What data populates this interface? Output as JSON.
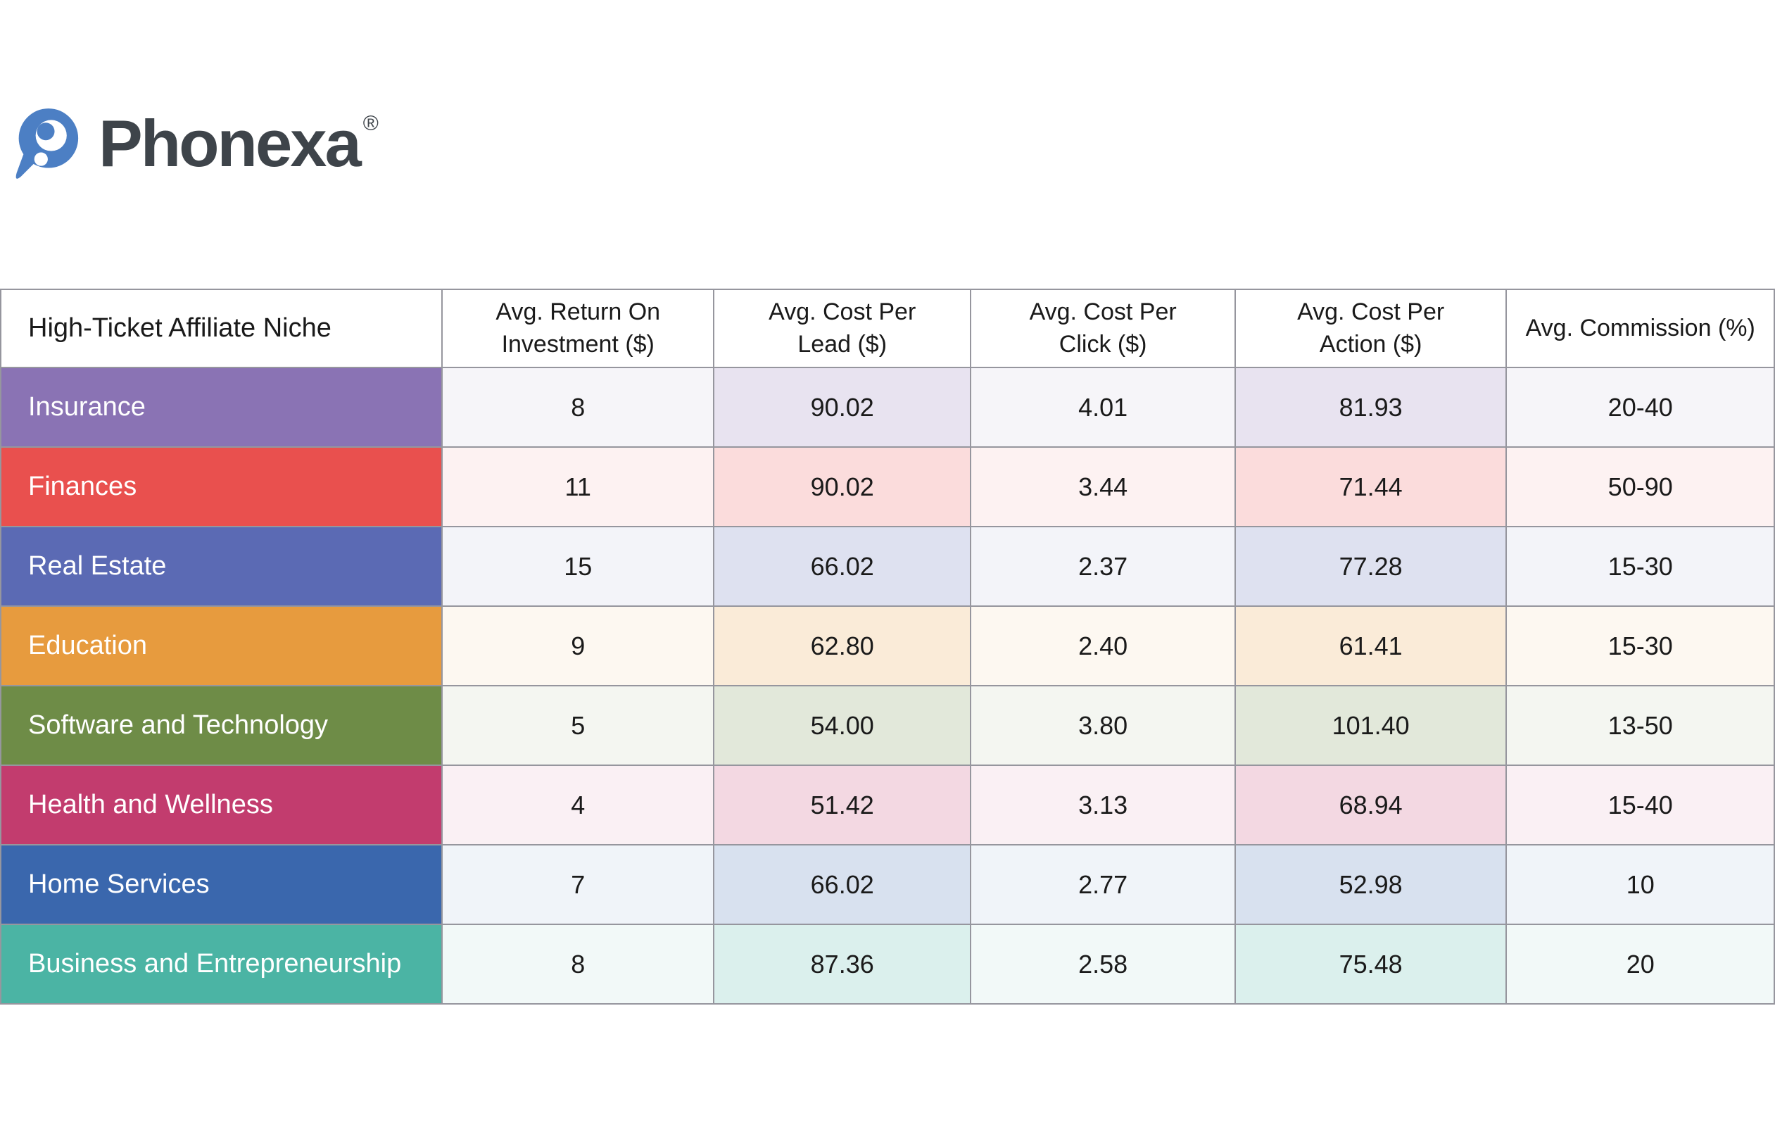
{
  "brand": {
    "name": "Phonexa",
    "registered_mark": "®",
    "logo_blue": "#4C7FC4",
    "wordmark_color": "#3E444A"
  },
  "table_style": {
    "border_color": "#96969e",
    "niche_text_color": "#FFFFFF",
    "value_text_color": "#1A1A1A",
    "light_tint_ratio": 0.075,
    "medium_tint_ratio": 0.2
  },
  "chart_data": {
    "type": "table",
    "columns": [
      "High-Ticket Affiliate Niche",
      "Avg. Return On\nInvestment ($)",
      "Avg. Cost Per\nLead ($)",
      "Avg. Cost Per\nClick ($)",
      "Avg. Cost Per\nAction ($)",
      "Avg. Commission (%)"
    ],
    "rows": [
      {
        "niche": "Insurance",
        "color": "#8A73B4",
        "values": [
          "8",
          "90.02",
          "4.01",
          "81.93",
          "20-40"
        ]
      },
      {
        "niche": "Finances",
        "color": "#E9504E",
        "values": [
          "11",
          "90.02",
          "3.44",
          "71.44",
          "50-90"
        ]
      },
      {
        "niche": "Real Estate",
        "color": "#5B6AB4",
        "values": [
          "15",
          "66.02",
          "2.37",
          "77.28",
          "15-30"
        ]
      },
      {
        "niche": "Education",
        "color": "#E79B3E",
        "values": [
          "9",
          "62.80",
          "2.40",
          "61.41",
          "15-30"
        ]
      },
      {
        "niche": "Software and Technology",
        "color": "#6E8C47",
        "values": [
          "5",
          "54.00",
          "3.80",
          "101.40",
          "13-50"
        ]
      },
      {
        "niche": "Health and Wellness",
        "color": "#C23C6E",
        "values": [
          "4",
          "51.42",
          "3.13",
          "68.94",
          "15-40"
        ]
      },
      {
        "niche": "Home Services",
        "color": "#3A67AD",
        "values": [
          "7",
          "66.02",
          "2.77",
          "52.98",
          "10"
        ]
      },
      {
        "niche": "Business and Entrepreneurship",
        "color": "#4BB4A4",
        "values": [
          "8",
          "87.36",
          "2.58",
          "75.48",
          "20"
        ]
      }
    ]
  }
}
